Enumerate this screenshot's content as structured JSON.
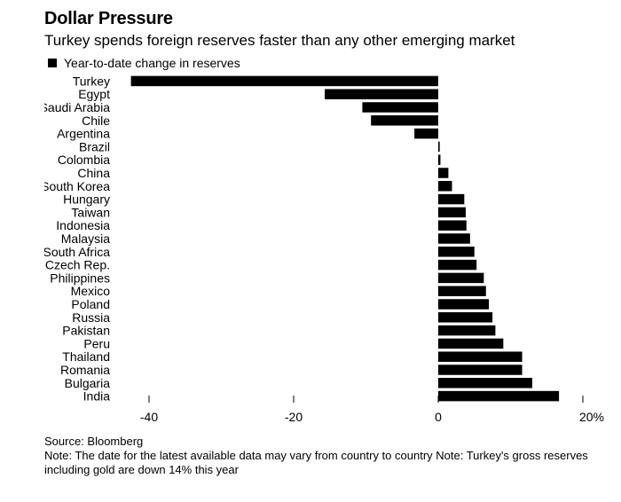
{
  "title": "Dollar Pressure",
  "subtitle": "Turkey spends foreign reserves faster than any other emerging market",
  "legend_label": "Year-to-date change in reserves",
  "source": "Source: Bloomberg",
  "note": "Note: The date for the latest available data may vary from country to country Note: Turkey's gross reserves including gold are down 14% this year",
  "colors": {
    "bar": "#000000",
    "axis": "#000000"
  },
  "chart_data": {
    "type": "bar",
    "orientation": "horizontal",
    "title": "Dollar Pressure",
    "subtitle": "Turkey spends foreign reserves faster than any other emerging market",
    "categories": [
      "Turkey",
      "Egypt",
      "Saudi Arabia",
      "Chile",
      "Argentina",
      "Brazil",
      "Colombia",
      "China",
      "South Korea",
      "Hungary",
      "Taiwan",
      "Indonesia",
      "Malaysia",
      "South Africa",
      "Czech Rep.",
      "Philippines",
      "Mexico",
      "Poland",
      "Russia",
      "Pakistan",
      "Peru",
      "Thailand",
      "Romania",
      "Bulgaria",
      "India"
    ],
    "series": [
      {
        "name": "Year-to-date change in reserves",
        "values": [
          -42.5,
          -15.7,
          -10.5,
          -9.3,
          -3.3,
          0.2,
          0.3,
          1.4,
          1.9,
          3.6,
          3.8,
          3.9,
          4.4,
          5.0,
          5.3,
          6.3,
          6.6,
          7.0,
          7.5,
          7.9,
          9.0,
          11.6,
          11.6,
          13.0,
          16.7
        ]
      }
    ],
    "xlim": [
      -45,
      20
    ],
    "xticks": [
      -40,
      -20,
      0,
      20
    ],
    "xtick_labels": [
      "-40",
      "-20",
      "0",
      "20%"
    ],
    "grid": false,
    "legend": "top-left"
  }
}
